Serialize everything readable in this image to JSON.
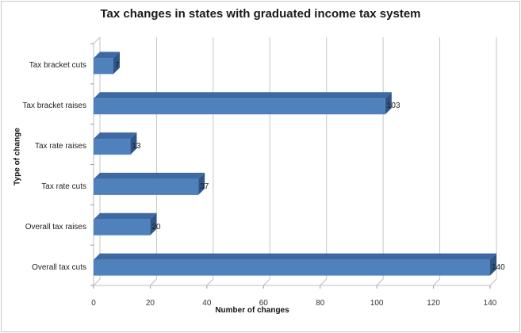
{
  "chart_data": {
    "type": "bar",
    "orientation": "horizontal",
    "style": "3d-clustered-bar",
    "title": "Tax changes in states with graduated income tax system",
    "xlabel": "Number of changes",
    "ylabel": "Type of change",
    "categories": [
      "Tax bracket cuts",
      "Tax bracket raises",
      "Tax rate raises",
      "Tax rate cuts",
      "Overall tax raises",
      "Overall tax cuts"
    ],
    "values": [
      7,
      103,
      13,
      37,
      20,
      140
    ],
    "xlim": [
      0,
      140
    ],
    "xticks": [
      "0",
      "20",
      "40",
      "60",
      "80",
      "100",
      "120",
      "140"
    ],
    "grid": true,
    "legend": "none",
    "bar_color": "#4f81bd",
    "data_labels": [
      "7",
      "103",
      "13",
      "37",
      "20",
      "140"
    ]
  }
}
